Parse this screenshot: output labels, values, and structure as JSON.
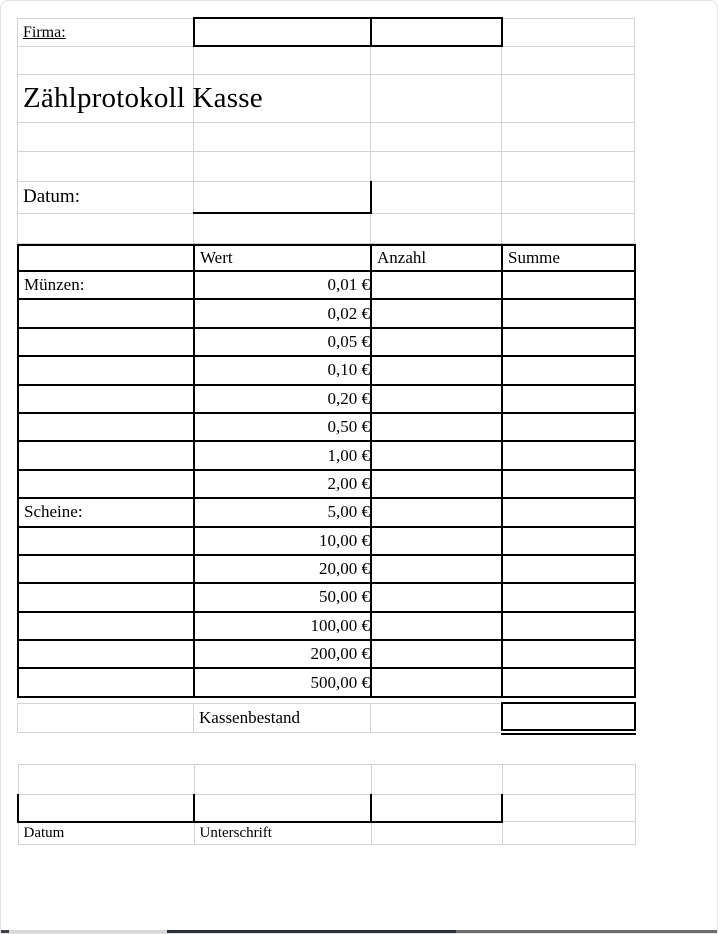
{
  "header": {
    "firma_label": "Firma:",
    "title": "Zählprotokoll Kasse",
    "datum_label": "Datum:"
  },
  "table": {
    "columns": {
      "wert": "Wert",
      "anzahl": "Anzahl",
      "summe": "Summe"
    },
    "rows": [
      {
        "group": "Münzen:",
        "wert": "0,01 €"
      },
      {
        "group": "",
        "wert": "0,02 €"
      },
      {
        "group": "",
        "wert": "0,05 €"
      },
      {
        "group": "",
        "wert": "0,10 €"
      },
      {
        "group": "",
        "wert": "0,20 €"
      },
      {
        "group": "",
        "wert": "0,50 €"
      },
      {
        "group": "",
        "wert": "1,00 €"
      },
      {
        "group": "",
        "wert": "2,00 €"
      },
      {
        "group": "Scheine:",
        "wert": "5,00 €"
      },
      {
        "group": "",
        "wert": "10,00 €"
      },
      {
        "group": "",
        "wert": "20,00 €"
      },
      {
        "group": "",
        "wert": "50,00 €"
      },
      {
        "group": "",
        "wert": "100,00 €"
      },
      {
        "group": "",
        "wert": "200,00 €"
      },
      {
        "group": "",
        "wert": "500,00 €"
      }
    ]
  },
  "summary": {
    "kassenbestand_label": "Kassenbestand"
  },
  "signature": {
    "datum_label": "Datum",
    "unterschrift_label": "Unterschrift"
  },
  "colors": {
    "grid_line": "#d2d2dc",
    "table_border": "#000000",
    "bar_left_dark": "#3f3f3f",
    "bar_light_gray": "#d9d9d9",
    "bar_dark_navy": "#2b3040",
    "bar_medium_gray": "#6b6b6b"
  }
}
